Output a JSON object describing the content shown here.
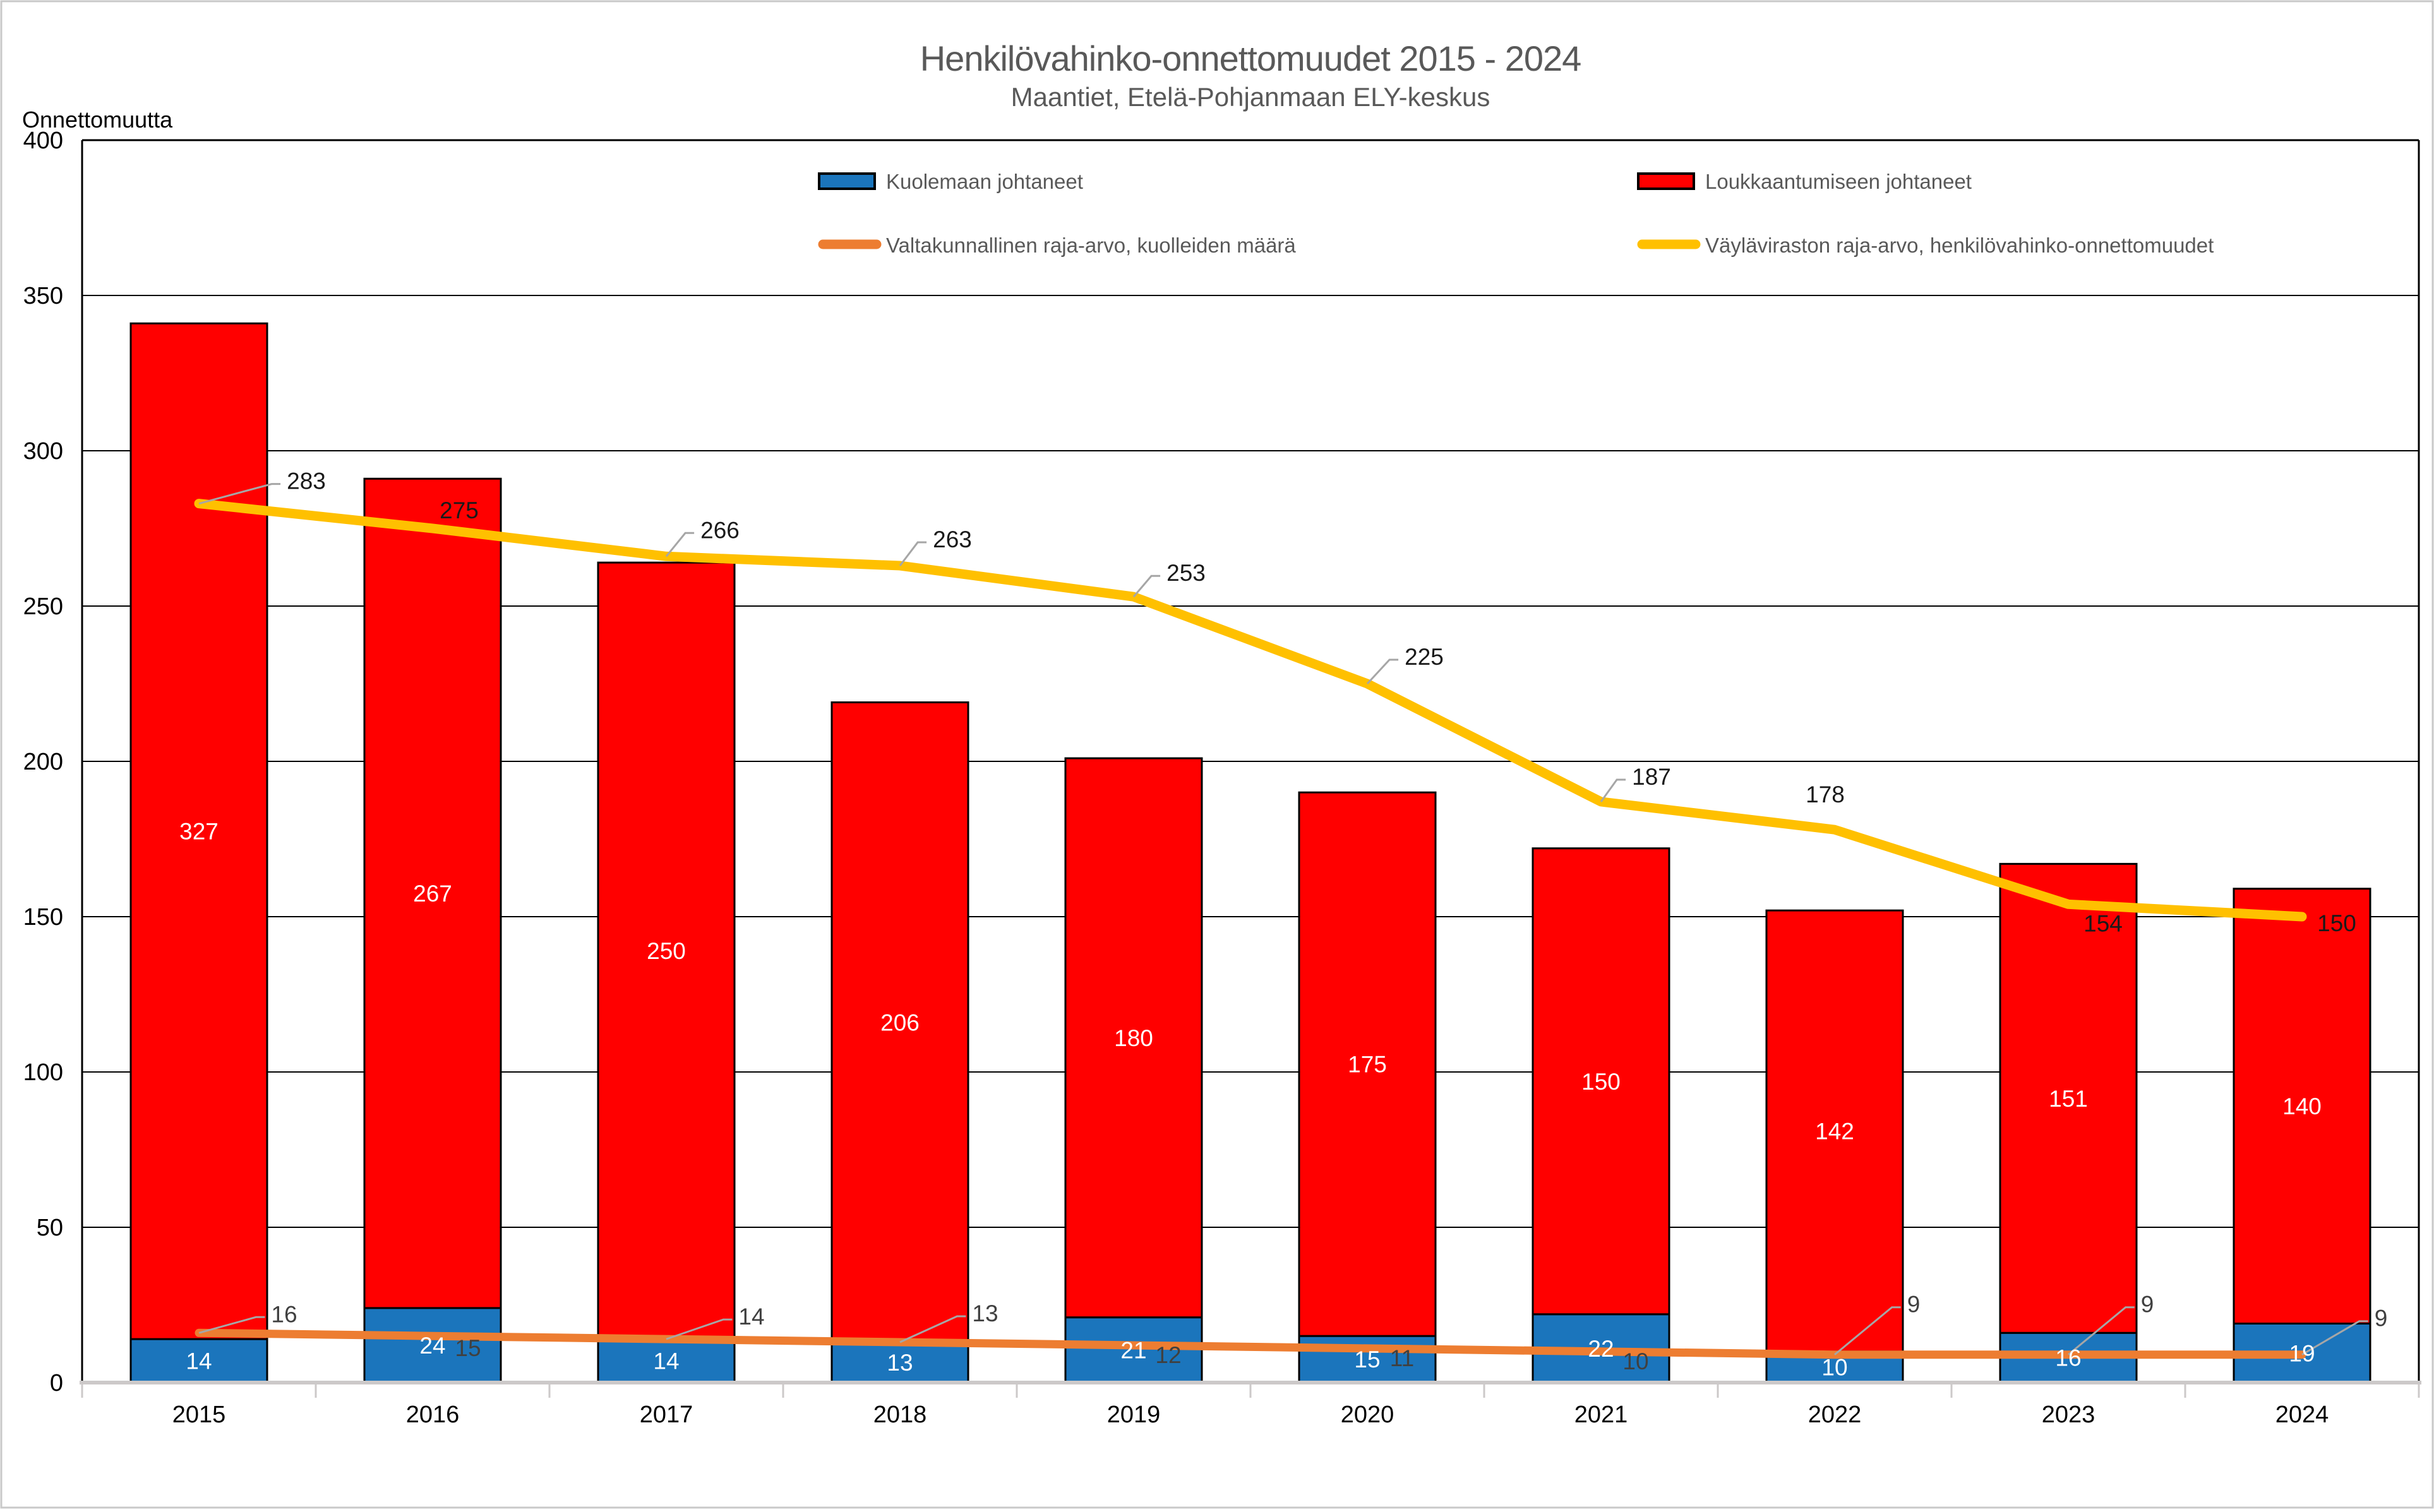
{
  "title": "Henkilövahinko-onnettomuudet 2015 - 2024",
  "subtitle": "Maantiet, Etelä-Pohjanmaan ELY-keskus",
  "y_axis_title": "Onnettomuutta",
  "legend": {
    "items": [
      {
        "label": "Kuolemaan johtaneet",
        "swatch": "box",
        "color": "#1B75BC"
      },
      {
        "label": "Loukkaantumiseen johtaneet",
        "swatch": "box",
        "color": "#FF0000"
      },
      {
        "label": "Valtakunnallinen raja-arvo, kuolleiden määrä",
        "swatch": "line",
        "color": "#ED7D31"
      },
      {
        "label": "Väyläviraston raja-arvo, henkilövahinko-onnettomuudet",
        "swatch": "line",
        "color": "#FFC000"
      }
    ]
  },
  "chart_data": {
    "type": "bar",
    "stacked": true,
    "title": "Henkilövahinko-onnettomuudet 2015 - 2024",
    "subtitle": "Maantiet, Etelä-Pohjanmaan ELY-keskus",
    "ylabel": "Onnettomuutta",
    "categories": [
      "2015",
      "2016",
      "2017",
      "2018",
      "2019",
      "2020",
      "2021",
      "2022",
      "2023",
      "2024"
    ],
    "series": [
      {
        "name": "Kuolemaan johtaneet",
        "kind": "bar",
        "color": "#1B75BC",
        "border": "#000000",
        "label_color": "#FFFFFF",
        "values": [
          14,
          24,
          14,
          13,
          21,
          15,
          22,
          10,
          16,
          19
        ]
      },
      {
        "name": "Loukkaantumiseen johtaneet",
        "kind": "bar",
        "color": "#FF0000",
        "border": "#000000",
        "label_color": "#FFFFFF",
        "values": [
          327,
          267,
          250,
          206,
          180,
          175,
          150,
          142,
          151,
          140
        ]
      },
      {
        "name": "Valtakunnallinen raja-arvo, kuolleiden määrä",
        "kind": "line",
        "color": "#ED7D31",
        "label_color": "#404040",
        "values": [
          16,
          15,
          14,
          13,
          12,
          11,
          10,
          9,
          9,
          9
        ],
        "annotations": [
          {
            "callout": true,
            "dx": 135,
            "dy": -30
          },
          {
            "callout": false,
            "dx": 56,
            "dy": 19
          },
          {
            "callout": true,
            "dx": 135,
            "dy": -36
          },
          {
            "callout": true,
            "dx": 135,
            "dy": -46
          },
          {
            "callout": false,
            "dx": 55,
            "dy": 15
          },
          {
            "callout": false,
            "dx": 55,
            "dy": 15
          },
          {
            "callout": false,
            "dx": 55,
            "dy": 15
          },
          {
            "callout": true,
            "dx": 125,
            "dy": -80
          },
          {
            "callout": true,
            "dx": 125,
            "dy": -80
          },
          {
            "callout": true,
            "dx": 125,
            "dy": -58
          }
        ]
      },
      {
        "name": "Väyläviraston raja-arvo, henkilövahinko-onnettomuudet",
        "kind": "line",
        "color": "#FFC000",
        "label_color": "#1A1A1A",
        "values": [
          283,
          275,
          266,
          263,
          253,
          225,
          187,
          178,
          154,
          150
        ],
        "annotations": [
          {
            "callout": true,
            "dx": 170,
            "dy": -36
          },
          {
            "callout": false,
            "dx": 42,
            "dy": -29
          },
          {
            "callout": true,
            "dx": 85,
            "dy": -42
          },
          {
            "callout": true,
            "dx": 83,
            "dy": -42
          },
          {
            "callout": true,
            "dx": 83,
            "dy": -38
          },
          {
            "callout": true,
            "dx": 90,
            "dy": -43
          },
          {
            "callout": true,
            "dx": 80,
            "dy": -40
          },
          {
            "callout": false,
            "dx": -15,
            "dy": -56
          },
          {
            "callout": false,
            "dx": 55,
            "dy": 30
          },
          {
            "callout": false,
            "dx": 55,
            "dy": 10
          }
        ]
      }
    ],
    "ylim": [
      0,
      400
    ],
    "yticks": [
      0,
      50,
      100,
      150,
      200,
      250,
      300,
      350,
      400
    ],
    "grid": true,
    "legend_position": "top",
    "grid_color": "#000000",
    "plot_border_color": "#000000",
    "x_axis_color": "#CCC9C9",
    "leader_color": "#A6A6A6",
    "frame_color": "#C9C9C9"
  }
}
